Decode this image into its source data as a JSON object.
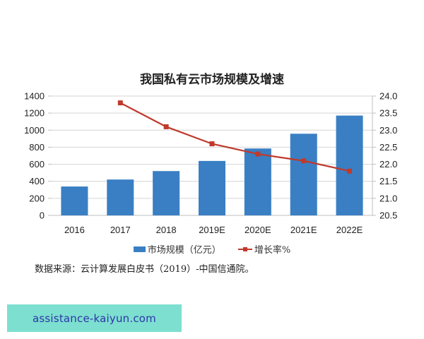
{
  "title": "我国私有云市场规模及增速",
  "legend": {
    "bar_label": "市场规模（亿元）",
    "line_label": "增长率%"
  },
  "source": "数据来源：云计算发展白皮书（2019）-中国信通院。",
  "banner": {
    "text": "assistance-kaiyun.com"
  },
  "colors": {
    "bar": "#3a7fc3",
    "line": "#c0392b",
    "banner_bg": "#7ddfcf",
    "banner_text": "#2d35a8"
  },
  "chart_data": {
    "type": "bar+line",
    "title": "我国私有云市场规模及增速",
    "categories": [
      "2016",
      "2017",
      "2018",
      "2019E",
      "2020E",
      "2021E",
      "2022E"
    ],
    "series": [
      {
        "name": "市场规模（亿元）",
        "type": "bar",
        "axis": "left",
        "values": [
          339,
          421,
          520,
          639,
          785,
          958,
          1171
        ]
      },
      {
        "name": "增长率%",
        "type": "line",
        "axis": "right",
        "values": [
          null,
          23.8,
          23.1,
          22.6,
          22.3,
          22.1,
          21.8
        ]
      }
    ],
    "y_left": {
      "ticks": [
        "0",
        "200",
        "400",
        "600",
        "800",
        "1000",
        "1200",
        "1400"
      ],
      "ylim": [
        0,
        1400
      ]
    },
    "y_right": {
      "ticks": [
        "20.5",
        "21.0",
        "21.5",
        "22.0",
        "22.5",
        "23.0",
        "23.5",
        "24.0"
      ],
      "ylim": [
        20.5,
        24.0
      ]
    },
    "grid": true,
    "legend_position": "bottom"
  }
}
